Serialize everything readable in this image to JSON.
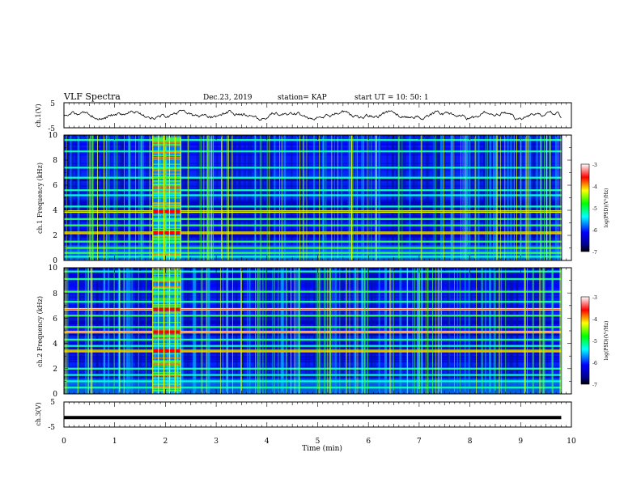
{
  "header": {
    "title": "VLF Spectra",
    "date": "Dec.23, 2019",
    "station": "station= KAP",
    "start": "start UT =  10: 50: 1"
  },
  "chart_data": [
    {
      "type": "line",
      "name": "ch1-waveform-panel",
      "ylabel": "ch.1(V)",
      "ylim": [
        -5,
        5
      ],
      "y_ticks": [
        "5",
        "-5"
      ],
      "xlim": [
        0,
        10
      ],
      "note_values": "noisy oscillating signal around 0 V, amplitude about ±1.5 V across 0–9.8 min"
    },
    {
      "type": "heatmap",
      "name": "ch1-spectrogram",
      "ylabel": "ch.1 Frequency (kHz)",
      "ylim": [
        0,
        10
      ],
      "y_ticks": [
        "0",
        "2",
        "4",
        "6",
        "8",
        "10"
      ],
      "xlim": [
        0,
        9.8
      ],
      "colorbar": {
        "label": "log(PSD)(V²/Hz)",
        "range": [
          -7,
          -3
        ],
        "ticks": [
          "-3",
          "-4",
          "-5",
          "-6",
          "-7"
        ]
      },
      "bands_khz": [
        0.3,
        0.6,
        1.0,
        1.5,
        2.2,
        2.8,
        3.3,
        3.9,
        4.3,
        5.2,
        5.6,
        6.6,
        7.4,
        8.7,
        9.6
      ],
      "strong_bands_khz": [
        2.2,
        3.9
      ],
      "highlight_interval_min": [
        1.75,
        2.3
      ]
    },
    {
      "type": "heatmap",
      "name": "ch2-spectrogram",
      "ylabel": "ch.2 Frequency (kHz)",
      "ylim": [
        0,
        10
      ],
      "y_ticks": [
        "0",
        "2",
        "4",
        "6",
        "8",
        "10"
      ],
      "xlim": [
        0,
        9.8
      ],
      "colorbar": {
        "label": "log(PSD)(V²/Hz)",
        "range": [
          -7,
          -3
        ],
        "ticks": [
          "-3",
          "-4",
          "-5",
          "-6",
          "-7"
        ]
      },
      "bands_khz": [
        0.5,
        1.0,
        1.5,
        2.0,
        3.4,
        3.8,
        4.3,
        4.9,
        5.3,
        6.2,
        6.7,
        7.3,
        8.1,
        9.1,
        9.7
      ],
      "strong_bands_khz": [
        3.4,
        4.9,
        6.7
      ],
      "highlight_interval_min": [
        1.75,
        2.3
      ]
    },
    {
      "type": "line",
      "name": "ch3-waveform-panel",
      "ylabel": "ch.3(V)",
      "ylim": [
        -5,
        5
      ],
      "y_ticks": [
        "5",
        "-5"
      ],
      "xlim": [
        0,
        10
      ],
      "x": [
        0,
        9.8
      ],
      "y": [
        -1.2,
        -1.2
      ]
    }
  ],
  "x_axis": {
    "label": "Time (min)",
    "ticks": [
      "0",
      "1",
      "2",
      "3",
      "4",
      "5",
      "6",
      "7",
      "8",
      "9",
      "10"
    ]
  },
  "colors": {
    "bg_dark": "#000070",
    "bg_blue": "#0000ff",
    "cyan": "#00ffff",
    "green": "#40ff40",
    "yellow": "#e6ff00",
    "red": "#ff0000"
  }
}
